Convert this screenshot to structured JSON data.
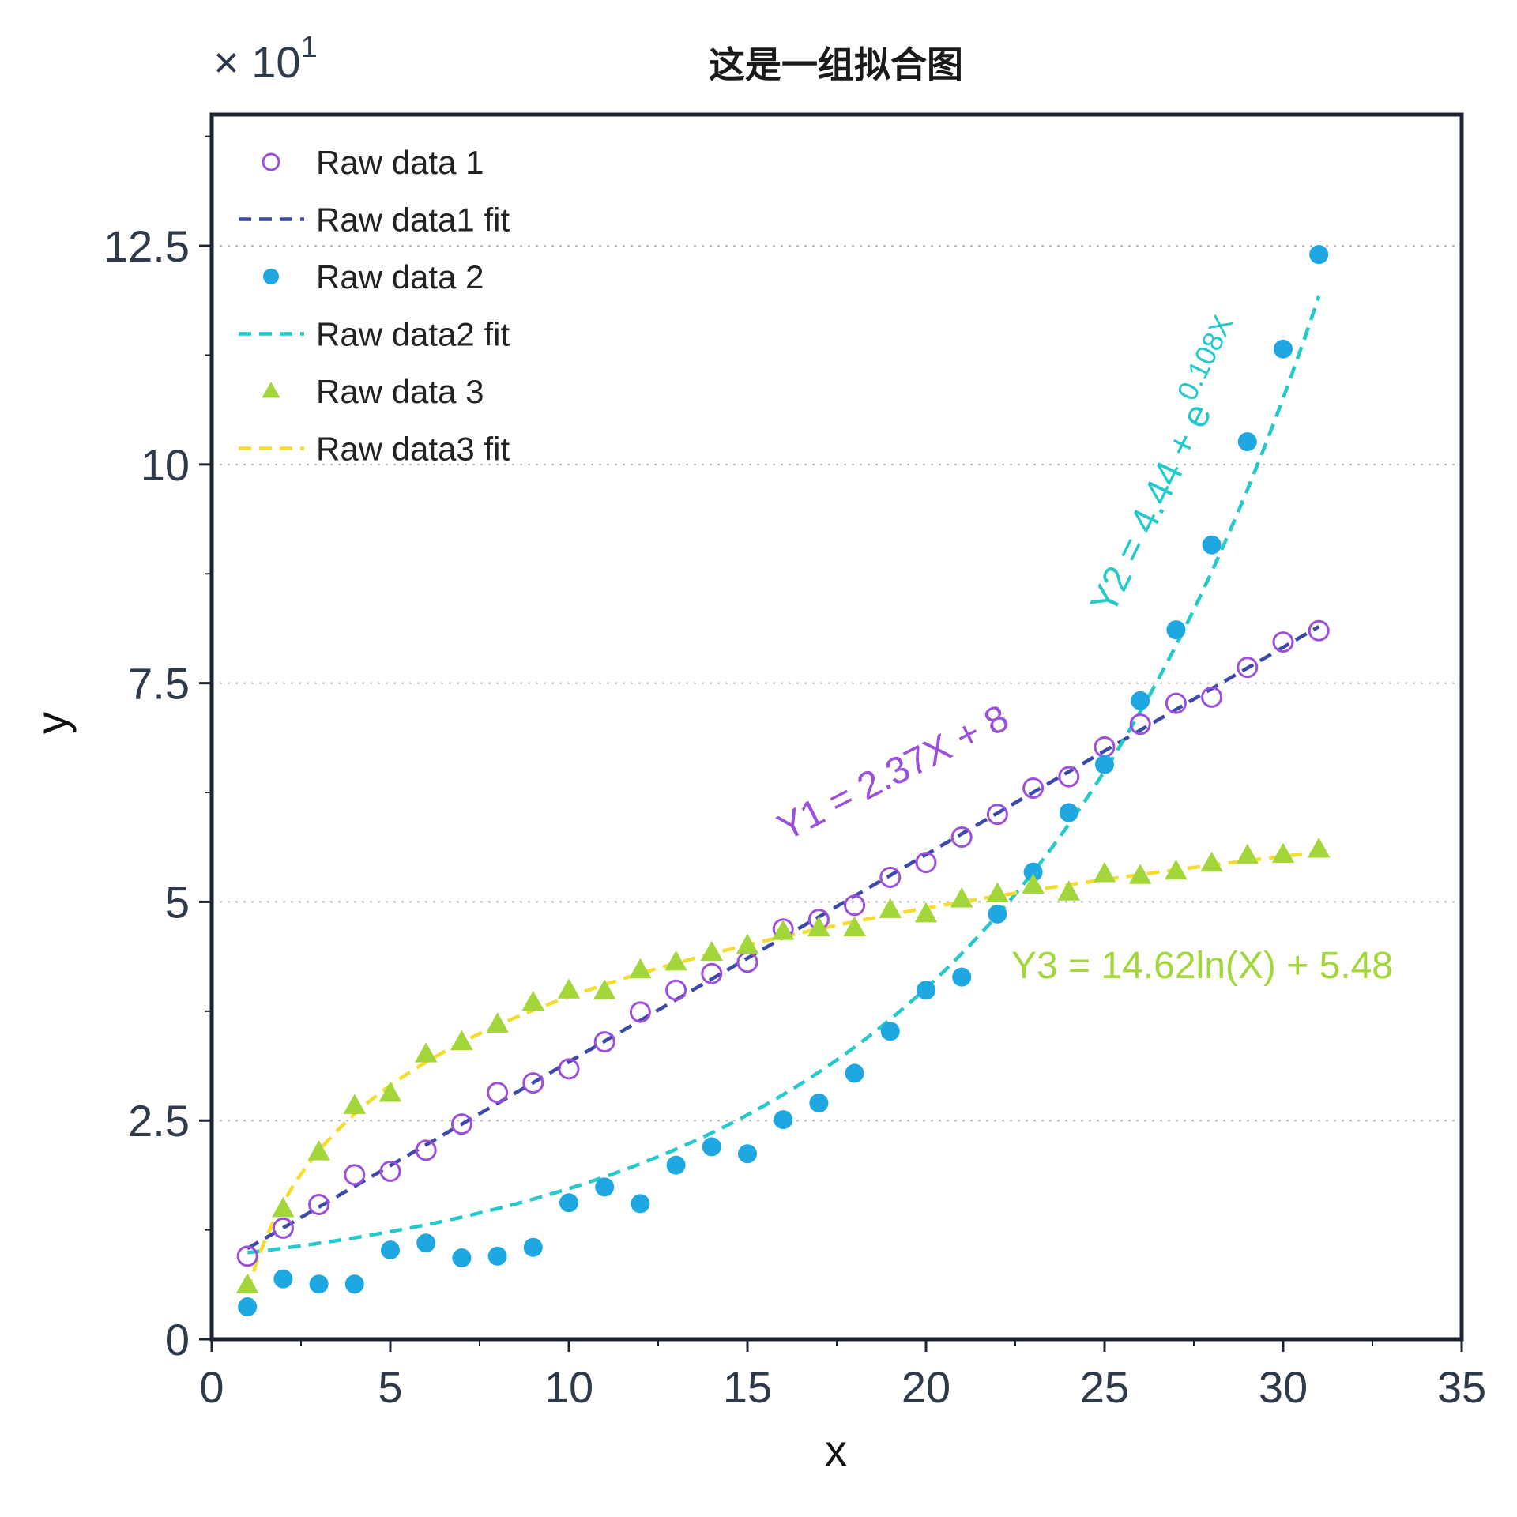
{
  "chart_data": {
    "type": "scatter",
    "title": "这是一组拟合图",
    "xlabel": "x",
    "ylabel": "y",
    "y_scale_label": "× 10",
    "y_scale_exponent": "1",
    "xlim": [
      0,
      35
    ],
    "ylim": [
      0,
      14
    ],
    "x_ticks": [
      0,
      5,
      10,
      15,
      20,
      25,
      30,
      35
    ],
    "x_tick_labels": [
      "0",
      "5",
      "10",
      "15",
      "20",
      "25",
      "30",
      "35"
    ],
    "y_ticks": [
      0,
      2.5,
      5,
      7.5,
      10,
      12.5
    ],
    "y_tick_labels": [
      "0",
      "2.5",
      "5",
      "7.5",
      "10",
      "12.5"
    ],
    "grid": "horizontal dotted",
    "legend_position": "top-left",
    "series": [
      {
        "name": "Raw data 1",
        "kind": "scatter",
        "marker": "open-circle",
        "color": "#9b4fdb",
        "x": [
          1,
          2,
          3,
          4,
          5,
          6,
          7,
          8,
          9,
          10,
          11,
          12,
          13,
          14,
          15,
          16,
          17,
          18,
          19,
          20,
          21,
          22,
          23,
          24,
          25,
          26,
          27,
          28,
          29,
          30,
          31
        ],
        "y": [
          0.95,
          1.27,
          1.54,
          1.88,
          1.92,
          2.16,
          2.46,
          2.82,
          2.93,
          3.09,
          3.4,
          3.74,
          3.99,
          4.18,
          4.31,
          4.69,
          4.8,
          4.96,
          5.28,
          5.45,
          5.74,
          6.0,
          6.3,
          6.43,
          6.77,
          7.03,
          7.27,
          7.34,
          7.68,
          7.97,
          8.1
        ]
      },
      {
        "name": "Raw data1 fit",
        "kind": "line",
        "dash": "dashed",
        "color": "#3d49a8",
        "formula_slope": 0.237,
        "formula_intercept": 0.8,
        "x_range": [
          1,
          31
        ]
      },
      {
        "name": "Raw data 2",
        "kind": "scatter",
        "marker": "filled-circle",
        "color": "#1ea7e0",
        "x": [
          1,
          2,
          3,
          4,
          5,
          6,
          7,
          8,
          9,
          10,
          11,
          12,
          13,
          14,
          15,
          16,
          17,
          18,
          19,
          20,
          21,
          22,
          23,
          24,
          25,
          26,
          27,
          28,
          29,
          30,
          31
        ],
        "y": [
          0.37,
          0.69,
          0.63,
          0.63,
          1.02,
          1.1,
          0.93,
          0.95,
          1.05,
          1.56,
          1.74,
          1.55,
          1.99,
          2.2,
          2.12,
          2.51,
          2.7,
          3.04,
          3.52,
          3.99,
          4.14,
          4.86,
          5.34,
          6.02,
          6.57,
          7.3,
          8.11,
          9.08,
          10.26,
          11.32,
          12.4
        ]
      },
      {
        "name": "Raw data2 fit",
        "kind": "line",
        "dash": "dashed",
        "color": "#25c9c9",
        "formula_a": 0.444,
        "formula_b": 0.108,
        "x_range": [
          1,
          31
        ]
      },
      {
        "name": "Raw data 3",
        "kind": "scatter",
        "marker": "filled-triangle",
        "color": "#a3d63a",
        "x": [
          1,
          2,
          3,
          4,
          5,
          6,
          7,
          8,
          9,
          10,
          11,
          12,
          13,
          14,
          15,
          16,
          17,
          18,
          19,
          20,
          21,
          22,
          23,
          24,
          25,
          26,
          27,
          28,
          29,
          30,
          31
        ],
        "y": [
          0.62,
          1.49,
          2.14,
          2.67,
          2.81,
          3.26,
          3.4,
          3.6,
          3.85,
          3.99,
          3.98,
          4.22,
          4.31,
          4.42,
          4.5,
          4.66,
          4.7,
          4.7,
          4.91,
          4.86,
          5.03,
          5.09,
          5.19,
          5.11,
          5.32,
          5.3,
          5.35,
          5.44,
          5.53,
          5.54,
          5.6
        ]
      },
      {
        "name": "Raw data3 fit",
        "kind": "line",
        "dash": "dashed",
        "color": "#f5dc2e",
        "formula_a": 1.462,
        "formula_b": 0.548,
        "x_range": [
          1,
          31
        ]
      }
    ],
    "annotations": [
      {
        "text": "Y1 = 2.37X + 8",
        "color": "#9b4fdb"
      },
      {
        "text": "Y2 = 4.44 + e",
        "superscript": "0.108X",
        "color": "#25c9c9"
      },
      {
        "text": "Y3 = 14.62ln(X) + 5.48",
        "color": "#a3d63a"
      }
    ]
  }
}
